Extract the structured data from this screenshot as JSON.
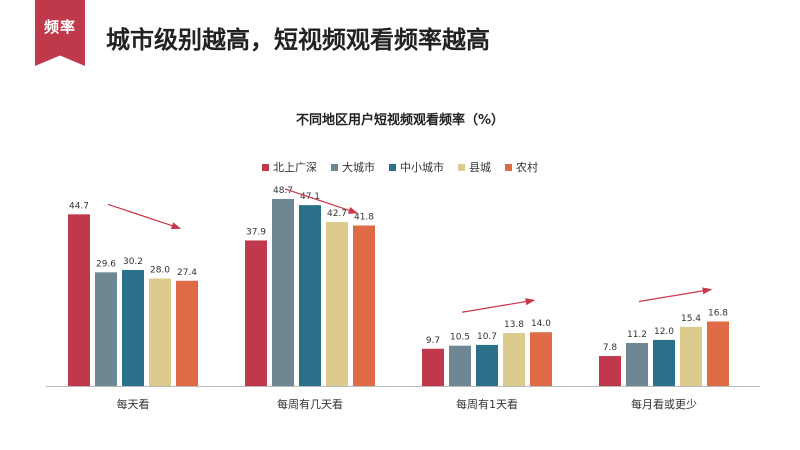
{
  "header": {
    "tag": "频率",
    "title": "城市级别越高，短视频观看频率越高"
  },
  "colors": {
    "accent": "#c0394b",
    "arrow": "#c8374a",
    "axis": "#bbbbbb"
  },
  "chart_data": {
    "type": "bar",
    "title": "不同地区用户短视频观看频率（%）",
    "xlabel": "",
    "ylabel": "",
    "ylim": [
      0,
      50
    ],
    "grid": false,
    "legend": "top-center",
    "categories": [
      "每天看",
      "每周有几天看",
      "每周有1天看",
      "每月看或更少"
    ],
    "series": [
      {
        "name": "北上广深",
        "color": "#c0384b",
        "values": [
          44.7,
          37.9,
          9.7,
          7.8
        ]
      },
      {
        "name": "大城市",
        "color": "#6d8892",
        "values": [
          29.6,
          48.7,
          10.5,
          11.2
        ]
      },
      {
        "name": "中小城市",
        "color": "#2a7089",
        "values": [
          30.2,
          47.1,
          10.7,
          12.0
        ]
      },
      {
        "name": "县城",
        "color": "#dccb8d",
        "values": [
          28.0,
          42.7,
          13.8,
          15.4
        ]
      },
      {
        "name": "农村",
        "color": "#de6b46",
        "values": [
          27.4,
          41.8,
          14.0,
          16.8
        ]
      }
    ],
    "trend_arrows": [
      "down",
      "down",
      "up",
      "up"
    ]
  }
}
